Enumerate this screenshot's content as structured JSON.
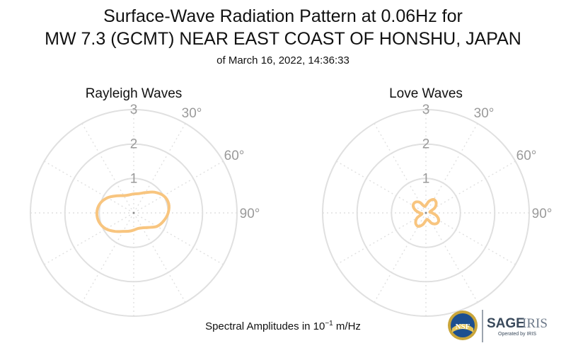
{
  "title": {
    "line1": "Surface-Wave Radiation Pattern at 0.06Hz for",
    "line2": "MW 7.3 (GCMT) NEAR EAST COAST OF HONSHU, JAPAN",
    "subtitle": "of March 16, 2022, 14:36:33"
  },
  "footer": {
    "text": "Spectral Amplitudes in 10",
    "exponent": "−1",
    "unit": " m/Hz"
  },
  "logo": {
    "nsf": "NSF",
    "sage": "SAGE",
    "iris": "IRIS",
    "operated_by": "Operated by IRIS"
  },
  "chart_data": [
    {
      "type": "polar",
      "title": "Rayleigh Waves",
      "r_ticks": [
        "1",
        "2",
        "3"
      ],
      "r_max": 3,
      "angle_labels": [
        "30°",
        "60°",
        "90°"
      ],
      "line_color": "#f8c57f",
      "grid_color": "#e0e0e0",
      "theta_deg": [
        0,
        15,
        30,
        45,
        60,
        75,
        90,
        105,
        120,
        135,
        150,
        165,
        180,
        195,
        210,
        225,
        240,
        255,
        270,
        285,
        300,
        315,
        330,
        345
      ],
      "r": [
        0.55,
        0.58,
        0.68,
        0.85,
        1.0,
        1.05,
        1.0,
        0.9,
        0.78,
        0.6,
        0.5,
        0.47,
        0.5,
        0.55,
        0.62,
        0.76,
        0.93,
        1.04,
        1.07,
        1.02,
        0.88,
        0.7,
        0.58,
        0.54
      ]
    },
    {
      "type": "polar",
      "title": "Love Waves",
      "r_ticks": [
        "1",
        "2",
        "3"
      ],
      "r_max": 3,
      "angle_labels": [
        "30°",
        "60°",
        "90°"
      ],
      "line_color": "#f8c57f",
      "grid_color": "#e0e0e0",
      "theta_deg": [
        0,
        15,
        30,
        45,
        60,
        75,
        90,
        105,
        120,
        135,
        150,
        165,
        180,
        195,
        210,
        225,
        240,
        255,
        270,
        285,
        300,
        315,
        330,
        345
      ],
      "r": [
        0.22,
        0.35,
        0.45,
        0.42,
        0.3,
        0.12,
        0.18,
        0.32,
        0.43,
        0.44,
        0.35,
        0.2,
        0.22,
        0.35,
        0.45,
        0.42,
        0.3,
        0.12,
        0.18,
        0.32,
        0.43,
        0.44,
        0.35,
        0.2
      ]
    }
  ]
}
